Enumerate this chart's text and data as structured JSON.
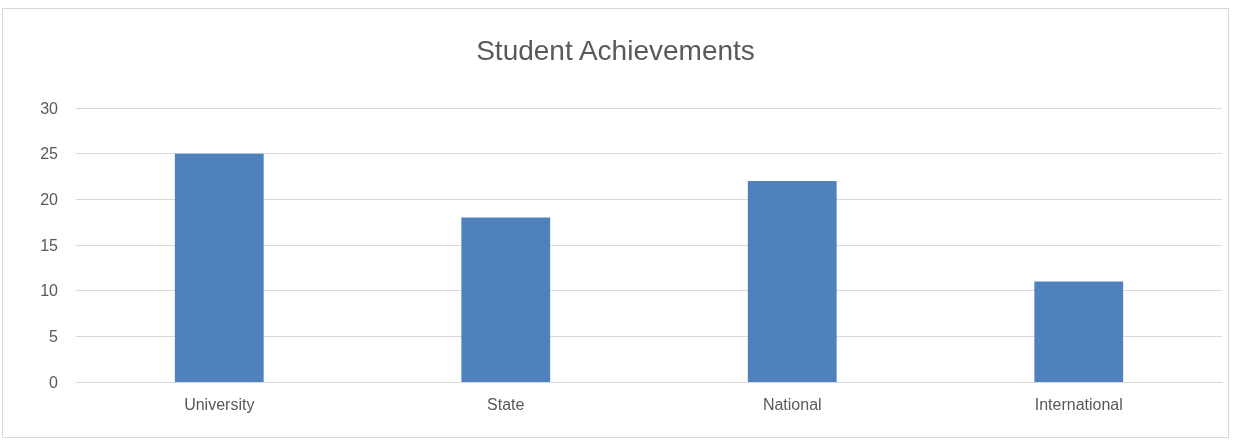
{
  "chart_data": {
    "type": "bar",
    "title": "Student Achievements",
    "categories": [
      "University",
      "State",
      "National",
      "International"
    ],
    "values": [
      25,
      18,
      22,
      11
    ],
    "color": "#4f81bd",
    "ylim": [
      0,
      30
    ],
    "yticks": [
      0,
      5,
      10,
      15,
      20,
      25,
      30
    ],
    "grid": "y"
  }
}
